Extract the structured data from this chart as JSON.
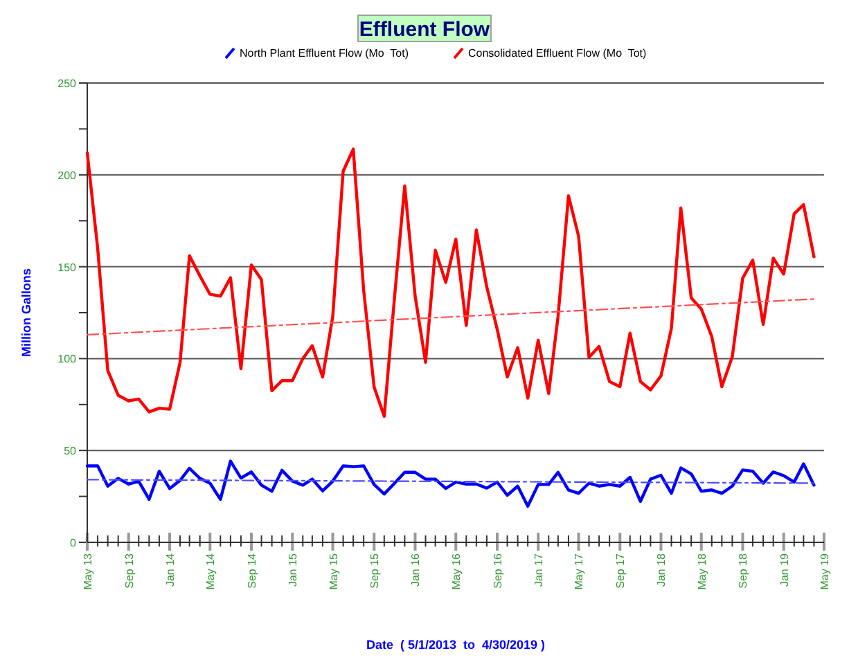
{
  "chart_data": {
    "type": "line",
    "title": "Effluent Flow",
    "xlabel": "Date  ( 5/1/2013  to  4/30/2019 )",
    "ylabel": "Million Gallons",
    "x": [
      "2013-05",
      "2013-06",
      "2013-07",
      "2013-08",
      "2013-09",
      "2013-10",
      "2013-11",
      "2013-12",
      "2014-01",
      "2014-02",
      "2014-03",
      "2014-04",
      "2014-05",
      "2014-06",
      "2014-07",
      "2014-08",
      "2014-09",
      "2014-10",
      "2014-11",
      "2014-12",
      "2015-01",
      "2015-02",
      "2015-03",
      "2015-04",
      "2015-05",
      "2015-06",
      "2015-07",
      "2015-08",
      "2015-09",
      "2015-10",
      "2015-11",
      "2015-12",
      "2016-01",
      "2016-02",
      "2016-03",
      "2016-04",
      "2016-05",
      "2016-06",
      "2016-07",
      "2016-08",
      "2016-09",
      "2016-10",
      "2016-11",
      "2016-12",
      "2017-01",
      "2017-02",
      "2017-03",
      "2017-04",
      "2017-05",
      "2017-06",
      "2017-07",
      "2017-08",
      "2017-09",
      "2017-10",
      "2017-11",
      "2017-12",
      "2018-01",
      "2018-02",
      "2018-03",
      "2018-04",
      "2018-05",
      "2018-06",
      "2018-07",
      "2018-08",
      "2018-09",
      "2018-10",
      "2018-11",
      "2018-12",
      "2019-01",
      "2019-02",
      "2019-03",
      "2019-04"
    ],
    "series": [
      {
        "name": "North Plant Effluent Flow (Mo  Tot)",
        "color": "#0000ff",
        "values": [
          41.6,
          41.6,
          30.6,
          34.8,
          31.7,
          33.3,
          23.4,
          38.7,
          29.3,
          33.7,
          40.3,
          34.8,
          32.2,
          23.4,
          44.2,
          35,
          38.3,
          31.1,
          27.8,
          39.2,
          33.3,
          31.1,
          34.4,
          28,
          33.3,
          41.6,
          41.2,
          41.6,
          31.5,
          26.3,
          32.2,
          38.1,
          38.1,
          34.4,
          34.4,
          29.3,
          32.8,
          31.7,
          31.7,
          29.5,
          32.8,
          25.6,
          30.6,
          19.7,
          31.5,
          31.5,
          38.1,
          28.5,
          26.7,
          32.2,
          30.6,
          31.5,
          30.6,
          35.4,
          22.3,
          34.4,
          36.5,
          26.7,
          40.5,
          37.2,
          27.8,
          28.5,
          26.7,
          30.6,
          39.4,
          38.7,
          32.2,
          38.3,
          36.3,
          32.8,
          42.7,
          31.1
        ]
      },
      {
        "name": "Consolidated Effluent Flow (Mo  Tot)",
        "color": "#ff0000",
        "values": [
          212,
          160,
          93.5,
          80,
          77,
          78,
          71,
          73,
          72.5,
          98,
          156,
          145,
          135,
          134,
          144,
          94.5,
          151,
          143,
          82.5,
          88,
          88,
          100,
          107,
          90,
          123,
          202,
          214,
          137,
          84.5,
          68.6,
          134,
          194,
          134,
          98,
          159,
          141.5,
          165,
          118,
          170,
          139,
          116,
          90,
          106,
          78.5,
          110,
          81,
          123,
          188.6,
          166.7,
          100.7,
          106.6,
          87.5,
          84.7,
          113.8,
          87.5,
          83,
          90.6,
          116.4,
          182,
          133,
          127,
          112,
          84.7,
          101,
          143.8,
          153.6,
          118.6,
          154.7,
          146,
          178.8,
          183.8,
          155.4
        ]
      },
      {
        "type": "line",
        "line_style": "dashed",
        "color": "#4a4aff",
        "x": [
          "2013-05",
          "2019-04"
        ],
        "values": [
          34.1,
          32.2
        ]
      },
      {
        "type": "line",
        "line_style": "dashed",
        "color": "#ff5050",
        "x": [
          "2013-05",
          "2019-04"
        ],
        "values": [
          113,
          132.4
        ]
      }
    ],
    "xlim": [
      "2013-05",
      "2019-05"
    ],
    "xticks": [
      {
        "value": "2013-05",
        "label": "May 13"
      },
      {
        "value": "2013-06",
        "label": null
      },
      {
        "value": "2013-07",
        "label": null
      },
      {
        "value": "2013-08",
        "label": null
      },
      {
        "value": "2013-09",
        "label": "Sep 13"
      },
      {
        "value": "2013-10",
        "label": null
      },
      {
        "value": "2013-11",
        "label": null
      },
      {
        "value": "2013-12",
        "label": null
      },
      {
        "value": "2014-01",
        "label": "Jan 14"
      },
      {
        "value": "2014-02",
        "label": null
      },
      {
        "value": "2014-03",
        "label": null
      },
      {
        "value": "2014-04",
        "label": null
      },
      {
        "value": "2014-05",
        "label": "May 14"
      },
      {
        "value": "2014-06",
        "label": null
      },
      {
        "value": "2014-07",
        "label": null
      },
      {
        "value": "2014-08",
        "label": null
      },
      {
        "value": "2014-09",
        "label": "Sep 14"
      },
      {
        "value": "2014-10",
        "label": null
      },
      {
        "value": "2014-11",
        "label": null
      },
      {
        "value": "2014-12",
        "label": null
      },
      {
        "value": "2015-01",
        "label": "Jan 15"
      },
      {
        "value": "2015-02",
        "label": null
      },
      {
        "value": "2015-03",
        "label": null
      },
      {
        "value": "2015-04",
        "label": null
      },
      {
        "value": "2015-05",
        "label": "May 15"
      },
      {
        "value": "2015-06",
        "label": null
      },
      {
        "value": "2015-07",
        "label": null
      },
      {
        "value": "2015-08",
        "label": null
      },
      {
        "value": "2015-09",
        "label": "Sep 15"
      },
      {
        "value": "2015-10",
        "label": null
      },
      {
        "value": "2015-11",
        "label": null
      },
      {
        "value": "2015-12",
        "label": null
      },
      {
        "value": "2016-01",
        "label": "Jan 16"
      },
      {
        "value": "2016-02",
        "label": null
      },
      {
        "value": "2016-03",
        "label": null
      },
      {
        "value": "2016-04",
        "label": null
      },
      {
        "value": "2016-05",
        "label": "May 16"
      },
      {
        "value": "2016-06",
        "label": null
      },
      {
        "value": "2016-07",
        "label": null
      },
      {
        "value": "2016-08",
        "label": null
      },
      {
        "value": "2016-09",
        "label": "Sep 16"
      },
      {
        "value": "2016-10",
        "label": null
      },
      {
        "value": "2016-11",
        "label": null
      },
      {
        "value": "2016-12",
        "label": null
      },
      {
        "value": "2017-01",
        "label": "Jan 17"
      },
      {
        "value": "2017-02",
        "label": null
      },
      {
        "value": "2017-03",
        "label": null
      },
      {
        "value": "2017-04",
        "label": null
      },
      {
        "value": "2017-05",
        "label": "May 17"
      },
      {
        "value": "2017-06",
        "label": null
      },
      {
        "value": "2017-07",
        "label": null
      },
      {
        "value": "2017-08",
        "label": null
      },
      {
        "value": "2017-09",
        "label": "Sep 17"
      },
      {
        "value": "2017-10",
        "label": null
      },
      {
        "value": "2017-11",
        "label": null
      },
      {
        "value": "2017-12",
        "label": null
      },
      {
        "value": "2018-01",
        "label": "Jan 18"
      },
      {
        "value": "2018-02",
        "label": null
      },
      {
        "value": "2018-03",
        "label": null
      },
      {
        "value": "2018-04",
        "label": null
      },
      {
        "value": "2018-05",
        "label": "May 18"
      },
      {
        "value": "2018-06",
        "label": null
      },
      {
        "value": "2018-07",
        "label": null
      },
      {
        "value": "2018-08",
        "label": null
      },
      {
        "value": "2018-09",
        "label": "Sep 18"
      },
      {
        "value": "2018-10",
        "label": null
      },
      {
        "value": "2018-11",
        "label": null
      },
      {
        "value": "2018-12",
        "label": null
      },
      {
        "value": "2019-01",
        "label": "Jan 19"
      },
      {
        "value": "2019-02",
        "label": null
      },
      {
        "value": "2019-03",
        "label": null
      },
      {
        "value": "2019-04",
        "label": null
      },
      {
        "value": "2019-05",
        "label": "May 19"
      }
    ],
    "ylim": [
      0,
      250
    ],
    "yticks": [
      0,
      {
        "value": 25,
        "label": null
      },
      50,
      {
        "value": 75,
        "label": null
      },
      100,
      {
        "value": 125,
        "label": null
      },
      150,
      {
        "value": 175,
        "label": null
      },
      200,
      {
        "value": 225,
        "label": null
      },
      250
    ],
    "grid": "y",
    "legend": "top",
    "marker": "none",
    "line_style": "solid"
  }
}
